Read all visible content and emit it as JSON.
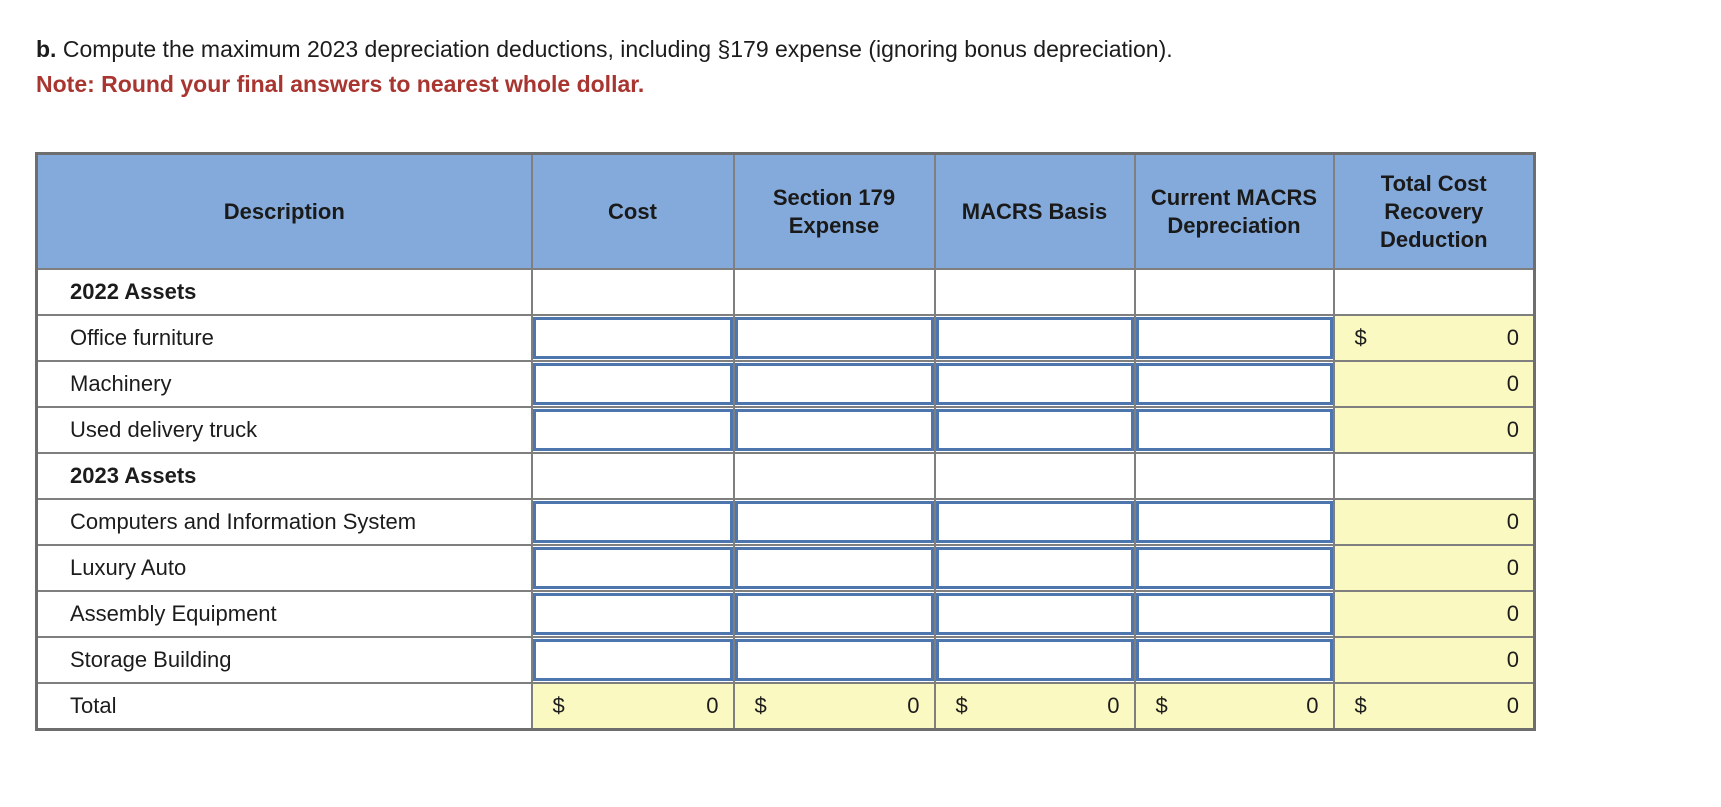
{
  "question": {
    "prefix": "b.",
    "text": " Compute the maximum 2023 depreciation deductions, including §179 expense (ignoring bonus depreciation).",
    "note": "Note: Round your final answers to nearest whole dollar."
  },
  "table": {
    "columns": [
      "Description",
      "Cost",
      "Section 179 Expense",
      "MACRS Basis",
      "Current MACRS Depreciation",
      "Total Cost Recovery Deduction"
    ],
    "rows": [
      {
        "label": "2022 Assets",
        "type": "group"
      },
      {
        "label": "Office furniture",
        "type": "input",
        "inputs": [
          "",
          "",
          "",
          ""
        ],
        "total_prefix": "$",
        "total_value": "0"
      },
      {
        "label": "Machinery",
        "type": "input",
        "inputs": [
          "",
          "",
          "",
          ""
        ],
        "total_prefix": "",
        "total_value": "0"
      },
      {
        "label": "Used delivery truck",
        "type": "input",
        "inputs": [
          "",
          "",
          "",
          ""
        ],
        "total_prefix": "",
        "total_value": "0"
      },
      {
        "label": "2023 Assets",
        "type": "group"
      },
      {
        "label": "Computers and Information System",
        "type": "input",
        "inputs": [
          "",
          "",
          "",
          ""
        ],
        "total_prefix": "",
        "total_value": "0"
      },
      {
        "label": "Luxury Auto",
        "type": "input",
        "inputs": [
          "",
          "",
          "",
          ""
        ],
        "total_prefix": "",
        "total_value": "0"
      },
      {
        "label": "Assembly Equipment",
        "type": "input",
        "inputs": [
          "",
          "",
          "",
          ""
        ],
        "total_prefix": "",
        "total_value": "0"
      },
      {
        "label": "Storage Building",
        "type": "input",
        "inputs": [
          "",
          "",
          "",
          ""
        ],
        "total_prefix": "",
        "total_value": "0"
      },
      {
        "label": "Total",
        "type": "total",
        "totals": [
          {
            "prefix": "$",
            "value": "0"
          },
          {
            "prefix": "$",
            "value": "0"
          },
          {
            "prefix": "$",
            "value": "0"
          },
          {
            "prefix": "$",
            "value": "0"
          },
          {
            "prefix": "$",
            "value": "0"
          }
        ]
      }
    ]
  },
  "colors": {
    "header_blue": "#84AADB",
    "input_border_blue": "#4E76AE",
    "computed_yellow": "#FBF9C2",
    "grid_gray": "#7f7f7f",
    "note_red": "#A93530"
  }
}
